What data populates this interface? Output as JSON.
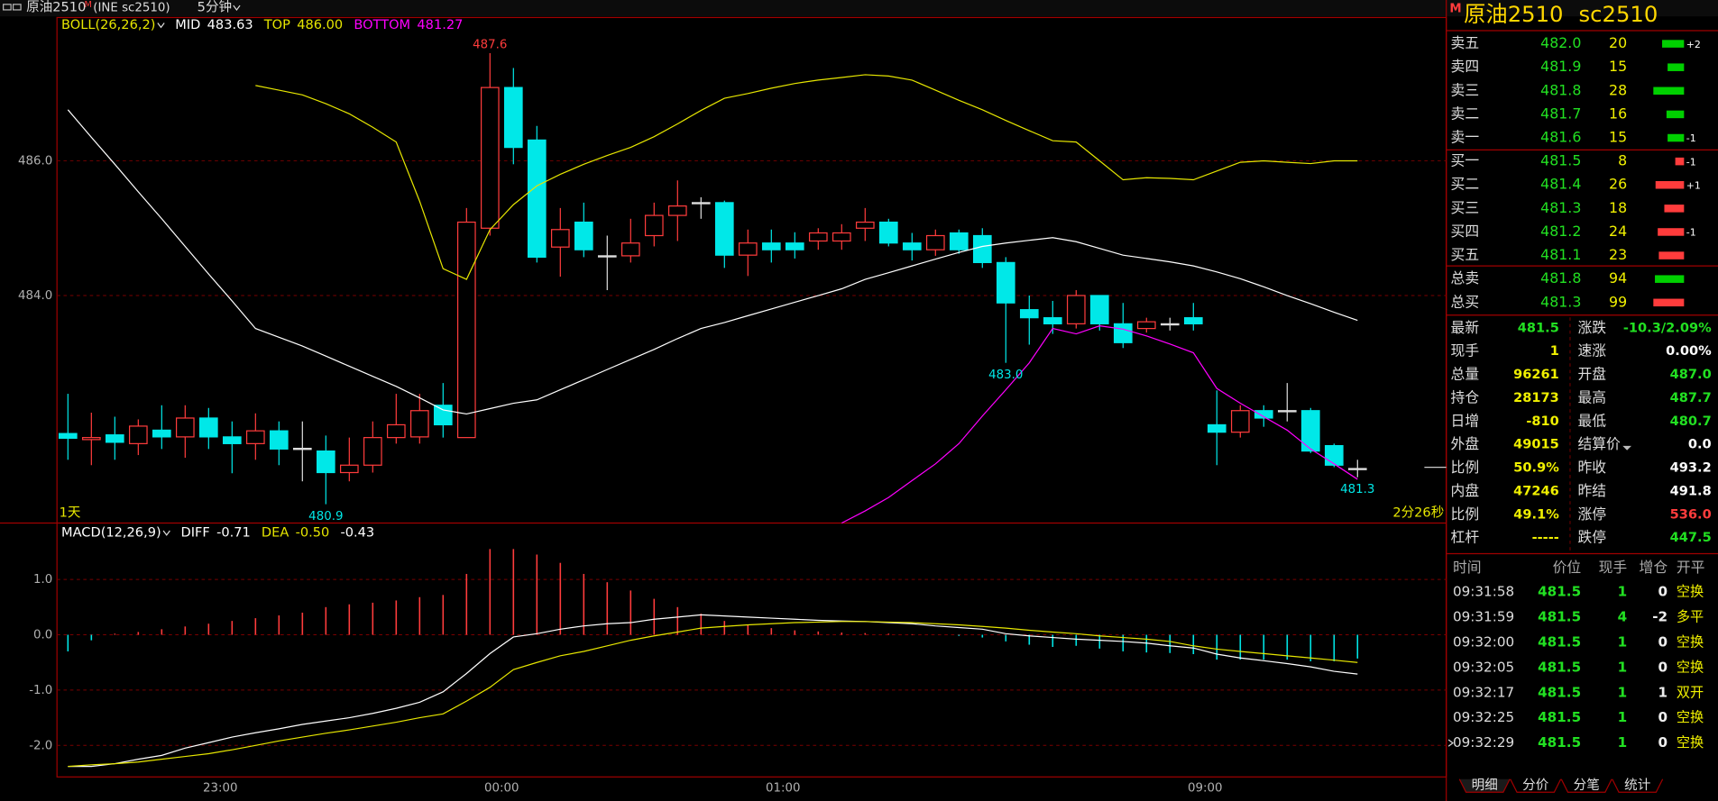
{
  "header": {
    "symbol": "原油2510",
    "flag": "M",
    "code": "(INE sc2510)",
    "period": "5分钟"
  },
  "chart_data": [
    {
      "type": "candlestick",
      "indicator": "BOLL(26,26,2)",
      "categories": [
        null,
        null,
        null,
        null,
        null,
        null,
        "23:00",
        null,
        null,
        null,
        null,
        null,
        null,
        null,
        null,
        null,
        null,
        null,
        "00:00",
        null,
        null,
        null,
        null,
        null,
        null,
        null,
        null,
        null,
        null,
        null,
        "01:00",
        null,
        null,
        null,
        null,
        null,
        null,
        null,
        null,
        null,
        null,
        null,
        null,
        null,
        null,
        null,
        null,
        null,
        "09:00",
        null,
        null,
        null,
        null,
        null,
        null,
        null
      ],
      "open": [
        481.95,
        481.86,
        481.93,
        481.8,
        482.0,
        481.9,
        482.18,
        481.9,
        481.8,
        481.99,
        481.73,
        481.69,
        481.37,
        481.48,
        481.89,
        481.9,
        482.37,
        481.89,
        485.0,
        487.09,
        486.31,
        484.72,
        485.09,
        484.59,
        484.59,
        484.89,
        485.19,
        485.38,
        485.38,
        484.6,
        484.78,
        484.78,
        484.81,
        484.81,
        485.0,
        485.09,
        484.78,
        484.68,
        484.93,
        484.89,
        484.49,
        483.79,
        483.67,
        483.58,
        484.0,
        483.58,
        483.51,
        483.58,
        483.67,
        482.08,
        481.97,
        482.29,
        482.29,
        482.29,
        481.77,
        481.43
      ],
      "high": [
        482.54,
        482.26,
        482.2,
        482.16,
        482.37,
        482.37,
        482.33,
        482.13,
        482.25,
        482.13,
        482.13,
        481.92,
        481.89,
        482.13,
        482.54,
        482.54,
        482.7,
        485.3,
        487.6,
        487.38,
        486.52,
        485.3,
        485.38,
        484.89,
        485.14,
        485.38,
        485.71,
        485.46,
        485.41,
        484.98,
        484.98,
        484.94,
        485.0,
        485.06,
        485.3,
        485.14,
        484.93,
        484.98,
        484.98,
        485.0,
        484.57,
        484.0,
        483.92,
        484.08,
        484.0,
        483.89,
        483.67,
        483.67,
        483.89,
        482.59,
        482.37,
        482.37,
        482.7,
        482.33,
        481.8,
        481.56
      ],
      "low": [
        481.56,
        481.48,
        481.56,
        481.63,
        481.72,
        481.59,
        481.72,
        481.36,
        481.56,
        481.48,
        481.24,
        480.9,
        481.24,
        481.37,
        481.8,
        481.8,
        481.89,
        481.89,
        484.89,
        485.95,
        484.49,
        484.28,
        484.57,
        484.08,
        484.49,
        484.73,
        484.81,
        485.14,
        484.41,
        484.29,
        484.49,
        484.55,
        484.68,
        484.68,
        484.81,
        484.73,
        484.52,
        484.59,
        484.62,
        484.41,
        483.0,
        483.27,
        483.43,
        483.51,
        483.48,
        483.22,
        483.45,
        483.48,
        483.48,
        481.48,
        481.89,
        482.05,
        482.13,
        481.66,
        481.45,
        481.3
      ],
      "close": [
        481.88,
        481.89,
        481.82,
        482.06,
        481.9,
        482.18,
        481.9,
        481.8,
        481.99,
        481.72,
        481.73,
        481.37,
        481.48,
        481.89,
        482.08,
        482.29,
        482.08,
        485.09,
        487.09,
        486.2,
        484.57,
        484.98,
        484.68,
        484.59,
        484.78,
        485.19,
        485.33,
        485.38,
        484.6,
        484.78,
        484.68,
        484.68,
        484.93,
        484.93,
        485.09,
        484.78,
        484.68,
        484.89,
        484.68,
        484.49,
        483.89,
        483.67,
        483.58,
        484.0,
        483.58,
        483.3,
        483.61,
        483.58,
        483.58,
        481.97,
        482.29,
        482.18,
        482.29,
        481.69,
        481.48,
        481.43
      ],
      "up_color": "#ff3c3c",
      "down_color": "#00e8e8",
      "flat_color": "#dddddd",
      "series": [
        {
          "name": "MID",
          "legend_value": "483.63",
          "color": "#ffffff",
          "values": [
            486.76,
            486.35,
            485.95,
            485.54,
            485.14,
            484.73,
            484.32,
            483.92,
            483.51,
            483.38,
            483.25,
            483.1,
            482.95,
            482.8,
            482.65,
            482.48,
            482.3,
            482.24,
            482.32,
            482.4,
            482.45,
            482.6,
            482.75,
            482.9,
            483.05,
            483.2,
            483.36,
            483.51,
            483.6,
            483.7,
            483.8,
            483.9,
            484.0,
            484.1,
            484.24,
            484.34,
            484.44,
            484.54,
            484.64,
            484.73,
            484.78,
            484.82,
            484.86,
            484.8,
            484.7,
            484.6,
            484.55,
            484.5,
            484.44,
            484.35,
            484.25,
            484.13,
            484.0,
            483.88,
            483.75,
            483.63
          ]
        },
        {
          "name": "TOP",
          "legend_value": "486.00",
          "color": "#e6e600",
          "values": [
            null,
            null,
            null,
            null,
            null,
            null,
            null,
            null,
            487.12,
            487.05,
            486.98,
            486.85,
            486.7,
            486.5,
            486.28,
            485.4,
            484.4,
            484.24,
            484.98,
            485.35,
            485.63,
            485.8,
            485.95,
            486.08,
            486.2,
            486.36,
            486.55,
            486.75,
            486.93,
            487.0,
            487.08,
            487.15,
            487.2,
            487.24,
            487.28,
            487.26,
            487.2,
            487.05,
            486.9,
            486.76,
            486.6,
            486.45,
            486.3,
            486.28,
            486.0,
            485.72,
            485.75,
            485.74,
            485.72,
            485.85,
            485.98,
            486.0,
            485.98,
            485.96,
            486.0,
            486.0
          ]
        },
        {
          "name": "BOTTOM",
          "legend_value": "481.27",
          "color": "#ff00ff",
          "values": [
            null,
            null,
            null,
            null,
            null,
            null,
            null,
            null,
            null,
            null,
            null,
            null,
            null,
            null,
            null,
            null,
            null,
            null,
            null,
            null,
            null,
            null,
            null,
            null,
            null,
            null,
            null,
            null,
            null,
            null,
            null,
            null,
            null,
            480.62,
            480.8,
            481.0,
            481.25,
            481.5,
            481.8,
            482.21,
            482.6,
            483.0,
            483.51,
            483.43,
            483.55,
            483.5,
            483.4,
            483.28,
            483.15,
            482.62,
            482.4,
            482.2,
            482.0,
            481.72,
            481.5,
            481.27
          ]
        }
      ],
      "ylim": [
        480.62,
        488.13
      ],
      "yticks": [
        {
          "value": 484,
          "label": "484.0"
        },
        {
          "value": 486,
          "label": "486.0"
        }
      ],
      "grid": true,
      "annotations": [
        487.6,
        480.9,
        {
          "value": 483,
          "label": "483.0"
        },
        481.3
      ],
      "period_label": "1天",
      "countdown": "2分26秒"
    },
    {
      "type": "macd",
      "indicator": "MACD(12,26,9)",
      "histogram": {
        "legend_value": "-0.43",
        "up_color": "#ff3c3c",
        "down_color": "#00e8e8",
        "values": [
          -0.3,
          -0.1,
          0.02,
          0.05,
          0.1,
          0.15,
          0.2,
          0.25,
          0.3,
          0.35,
          0.4,
          0.5,
          0.55,
          0.58,
          0.62,
          0.68,
          0.72,
          1.1,
          1.55,
          1.55,
          1.45,
          1.3,
          1.1,
          0.95,
          0.8,
          0.65,
          0.5,
          0.38,
          0.25,
          0.18,
          0.12,
          0.08,
          0.06,
          0.04,
          0.03,
          0.02,
          0.01,
          0.0,
          -0.02,
          -0.05,
          -0.12,
          -0.18,
          -0.22,
          -0.2,
          -0.25,
          -0.3,
          -0.32,
          -0.33,
          -0.35,
          -0.45,
          -0.45,
          -0.45,
          -0.45,
          -0.48,
          -0.48,
          -0.43
        ]
      },
      "series": [
        {
          "name": "DIFF",
          "legend_value": "-0.71",
          "color": "#ffffff",
          "values": [
            -2.38,
            -2.38,
            -2.33,
            -2.25,
            -2.18,
            -2.05,
            -1.95,
            -1.85,
            -1.77,
            -1.7,
            -1.62,
            -1.56,
            -1.5,
            -1.42,
            -1.33,
            -1.22,
            -1.03,
            -0.7,
            -0.34,
            -0.04,
            0.02,
            0.1,
            0.16,
            0.2,
            0.22,
            0.28,
            0.32,
            0.36,
            0.34,
            0.32,
            0.3,
            0.28,
            0.26,
            0.25,
            0.24,
            0.22,
            0.2,
            0.16,
            0.13,
            0.1,
            0.02,
            -0.02,
            -0.05,
            -0.08,
            -0.1,
            -0.12,
            -0.15,
            -0.2,
            -0.24,
            -0.35,
            -0.42,
            -0.47,
            -0.52,
            -0.58,
            -0.66,
            -0.71
          ]
        },
        {
          "name": "DEA",
          "legend_value": "-0.50",
          "color": "#e6e600",
          "values": [
            -2.38,
            -2.35,
            -2.33,
            -2.3,
            -2.25,
            -2.2,
            -2.15,
            -2.08,
            -2.0,
            -1.92,
            -1.85,
            -1.78,
            -1.72,
            -1.65,
            -1.58,
            -1.5,
            -1.43,
            -1.2,
            -0.95,
            -0.63,
            -0.5,
            -0.38,
            -0.3,
            -0.2,
            -0.1,
            -0.02,
            0.05,
            0.12,
            0.15,
            0.18,
            0.2,
            0.22,
            0.23,
            0.24,
            0.24,
            0.23,
            0.22,
            0.2,
            0.18,
            0.15,
            0.12,
            0.08,
            0.05,
            0.02,
            -0.02,
            -0.05,
            -0.08,
            -0.12,
            -0.2,
            -0.26,
            -0.3,
            -0.34,
            -0.38,
            -0.42,
            -0.46,
            -0.5
          ]
        }
      ],
      "ylim": [
        -2.57,
        1.98
      ],
      "yticks": [
        {
          "value": 1,
          "label": "1.0"
        },
        {
          "value": 0,
          "label": "0.0"
        },
        {
          "value": -1,
          "label": "-1.0"
        },
        {
          "value": -2,
          "label": "-2.0"
        }
      ],
      "grid": true
    }
  ],
  "quote": {
    "flag": "M",
    "name": "原油2510",
    "code": "sc2510",
    "book": [
      {
        "label": "卖五",
        "price": "482.0",
        "volume": "20",
        "change": "+2",
        "bar_color": "#00d000"
      },
      {
        "label": "卖四",
        "price": "481.9",
        "volume": "15",
        "bar_color": "#00d000"
      },
      {
        "label": "卖三",
        "price": "481.8",
        "volume": "28",
        "bar_color": "#00d000"
      },
      {
        "label": "卖二",
        "price": "481.7",
        "volume": "16",
        "bar_color": "#00d000"
      },
      {
        "label": "卖一",
        "price": "481.6",
        "volume": "15",
        "change": "-1",
        "bar_color": "#00d000"
      },
      {
        "label": "买一",
        "price": "481.5",
        "volume": "8",
        "change": "-1",
        "bar_color": "#ff3c3c"
      },
      {
        "label": "买二",
        "price": "481.4",
        "volume": "26",
        "change": "+1",
        "bar_color": "#ff3c3c"
      },
      {
        "label": "买三",
        "price": "481.3",
        "volume": "18",
        "bar_color": "#ff3c3c"
      },
      {
        "label": "买四",
        "price": "481.2",
        "volume": "24",
        "change": "-1",
        "bar_color": "#ff3c3c"
      },
      {
        "label": "买五",
        "price": "481.1",
        "volume": "23",
        "bar_color": "#ff3c3c"
      }
    ],
    "totals": [
      {
        "label": "总卖",
        "price": "481.8",
        "volume": "94",
        "bar_color": "#00d000"
      },
      {
        "label": "总买",
        "price": "481.3",
        "volume": "99",
        "bar_color": "#ff3c3c"
      }
    ],
    "stats": [
      [
        {
          "label": "最新",
          "value": "481.5",
          "color": "#22e022"
        },
        {
          "label": "涨跌",
          "value": "-10.3/2.09%",
          "color": "#22e022"
        }
      ],
      [
        {
          "label": "现手",
          "value": "1",
          "color": "#f0f000"
        },
        {
          "label": "速涨",
          "value": "0.00%",
          "color": "#ffffff"
        }
      ],
      [
        {
          "label": "总量",
          "value": "96261",
          "color": "#f0f000"
        },
        {
          "label": "开盘",
          "value": "487.0",
          "color": "#22e022"
        }
      ],
      [
        {
          "label": "持仓",
          "value": "28173",
          "color": "#f0f000"
        },
        {
          "label": "最高",
          "value": "487.7",
          "color": "#22e022"
        }
      ],
      [
        {
          "label": "日增",
          "value": "-810",
          "color": "#f0f000"
        },
        {
          "label": "最低",
          "value": "480.7",
          "color": "#22e022"
        }
      ],
      [
        {
          "label": "外盘",
          "value": "49015",
          "color": "#f0f000"
        },
        {
          "label": "结算价",
          "value": "0.0",
          "color": "#ffffff"
        }
      ],
      [
        {
          "label": "比例",
          "value": "50.9%",
          "color": "#f0f000"
        },
        {
          "label": "昨收",
          "value": "493.2",
          "color": "#ffffff"
        }
      ],
      [
        {
          "label": "内盘",
          "value": "47246",
          "color": "#f0f000"
        },
        {
          "label": "昨结",
          "value": "491.8",
          "color": "#ffffff"
        }
      ],
      [
        {
          "label": "比例",
          "value": "49.1%",
          "color": "#f0f000"
        },
        {
          "label": "涨停",
          "value": "536.0",
          "color": "#ff3c3c"
        }
      ],
      [
        {
          "label": "杠杆",
          "value": "-----",
          "color": "#f0f000"
        },
        {
          "label": "跌停",
          "value": "447.5",
          "color": "#22e022"
        }
      ]
    ],
    "trade_header": [
      "时间",
      "价位",
      "现手",
      "增仓",
      "开平"
    ],
    "trades": [
      [
        "09:31:58",
        "481.5",
        "1",
        "0",
        "空换"
      ],
      [
        "09:31:59",
        "481.5",
        "4",
        "-2",
        "多平"
      ],
      [
        "09:32:00",
        "481.5",
        "1",
        "0",
        "空换"
      ],
      [
        "09:32:05",
        "481.5",
        "1",
        "0",
        "空换"
      ],
      [
        "09:32:17",
        "481.5",
        "1",
        "1",
        "双开"
      ],
      [
        "09:32:25",
        "481.5",
        "1",
        "0",
        "空换"
      ],
      [
        "09:32:29",
        "481.5",
        "1",
        "0",
        "空换"
      ]
    ],
    "tabs": [
      "明细",
      "分价",
      "分笔",
      "统计"
    ]
  }
}
